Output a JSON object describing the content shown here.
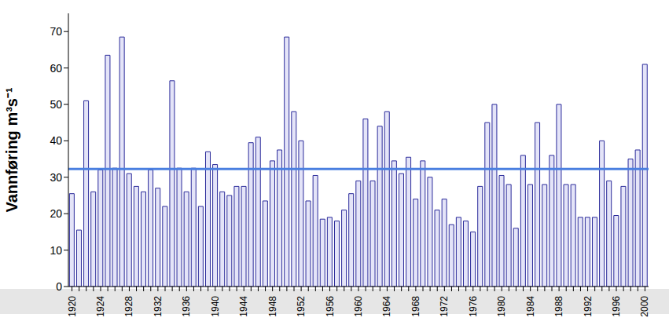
{
  "chart_data": {
    "type": "bar",
    "y_label": "Vannføring m³s⁻¹",
    "categories": [
      "1920",
      null,
      null,
      null,
      "1924",
      null,
      null,
      null,
      "1928",
      null,
      null,
      null,
      "1932",
      null,
      null,
      null,
      "1936",
      null,
      null,
      null,
      "1940",
      null,
      null,
      null,
      "1944",
      null,
      null,
      null,
      "1948",
      null,
      null,
      null,
      "1952",
      null,
      null,
      null,
      "1956",
      null,
      null,
      null,
      "1960",
      null,
      null,
      null,
      "1964",
      null,
      null,
      null,
      "1968",
      null,
      null,
      null,
      "1972",
      null,
      null,
      null,
      "1976",
      null,
      null,
      null,
      "1980",
      null,
      null,
      null,
      "1984",
      null,
      null,
      null,
      "1988",
      null,
      null,
      null,
      "1992",
      null,
      null,
      null,
      "1996",
      null,
      null,
      null,
      "2000"
    ],
    "values": [
      25.5,
      15.5,
      51,
      26,
      32,
      63.5,
      32.5,
      68.5,
      31,
      27.5,
      26,
      32,
      27,
      22,
      56.5,
      32.5,
      26,
      32.5,
      22,
      37,
      33.5,
      26,
      25,
      27.5,
      27.5,
      39.5,
      41,
      23.5,
      34.5,
      37.5,
      68.5,
      48,
      40,
      23.5,
      30.5,
      18.5,
      19,
      18,
      21,
      25.5,
      29,
      46,
      29,
      44,
      48,
      34.5,
      31,
      35.5,
      24,
      34.5,
      30,
      21,
      24,
      17,
      19,
      18,
      15,
      27.5,
      45,
      50,
      30.5,
      28,
      16,
      36,
      28,
      45,
      28,
      36,
      50,
      28,
      28,
      19,
      19,
      19,
      40,
      29,
      19.5,
      27.5,
      35,
      37.5,
      61
    ],
    "color": "#e4e4f8",
    "reference_line": 32.3,
    "ylim": [
      0,
      75
    ],
    "yticks": [
      0,
      10,
      20,
      30,
      40,
      50,
      60,
      70
    ],
    "grid": false
  }
}
